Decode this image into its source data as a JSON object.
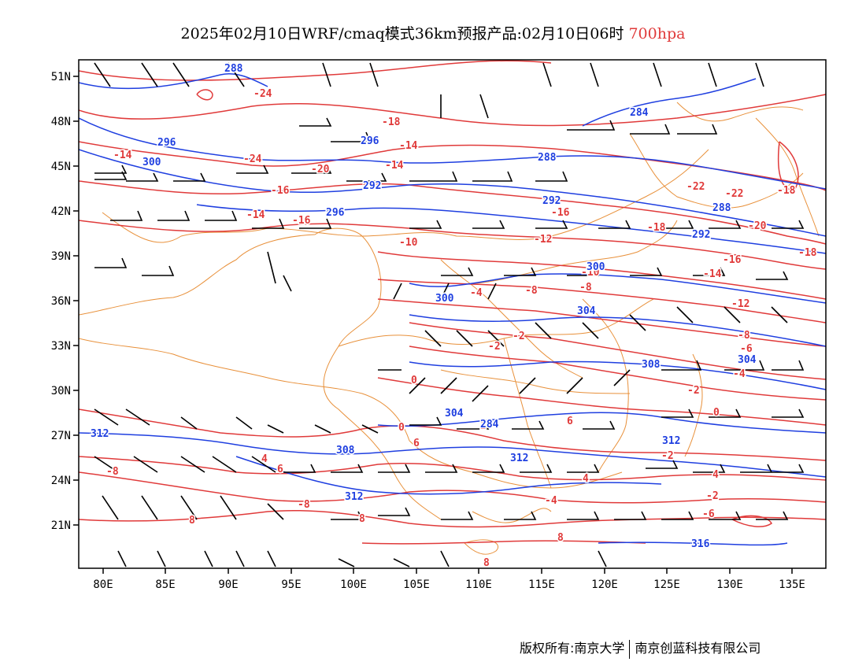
{
  "title": {
    "main": "2025年02月10日WRF/cmaq模式36km预报产品:02月10日06时",
    "level": "700hpa"
  },
  "colors": {
    "temperature": "#e03a3a",
    "height": "#1f3fe0",
    "border": "#e8903a",
    "wind": "#000000"
  },
  "axes": {
    "lat_ticks": [
      "51N",
      "48N",
      "45N",
      "42N",
      "39N",
      "36N",
      "33N",
      "30N",
      "27N",
      "24N",
      "21N"
    ],
    "lon_ticks": [
      "80E",
      "85E",
      "90E",
      "95E",
      "100E",
      "105E",
      "110E",
      "115E",
      "120E",
      "125E",
      "130E",
      "135E"
    ]
  },
  "temp_labels": [
    "-24",
    "-18",
    "-14",
    "-20",
    "-24",
    "-16",
    "-14",
    "-14",
    "-16",
    "-12",
    "-18",
    "-22",
    "-22",
    "-18",
    "-20",
    "-18",
    "-16",
    "-14",
    "-12",
    "-10",
    "-10",
    "-8",
    "-8",
    "-4",
    "-2",
    "-2",
    "-8",
    "-6",
    "-4",
    "0",
    "0",
    "-2",
    "-2",
    "0",
    "2",
    "4",
    "4",
    "6",
    "6",
    "6",
    "4",
    "-2",
    "-4",
    "-6",
    "-8",
    "-8",
    "8",
    "8",
    "8",
    "8",
    "-14",
    "-16"
  ],
  "height_labels": [
    "288",
    "296",
    "300",
    "284",
    "292",
    "296",
    "288",
    "292",
    "288",
    "292",
    "300",
    "300",
    "304",
    "304",
    "308",
    "304",
    "312",
    "308",
    "312",
    "312",
    "312",
    "316",
    "296",
    "284"
  ],
  "footer": {
    "left": "版权所有:南京大学",
    "right": "南京创蓝科技有限公司"
  }
}
